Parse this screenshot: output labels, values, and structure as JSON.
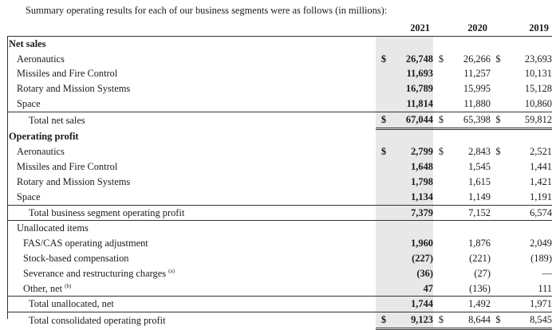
{
  "intro_text": "Summary operating results for each of our business segments were as follows (in millions):",
  "columns": [
    "2021",
    "2020",
    "2019"
  ],
  "currency_symbol": "$",
  "net_sales": {
    "heading": "Net sales",
    "rows": [
      {
        "label": "Aeronautics",
        "v2021": "26,748",
        "v2020": "26,266",
        "v2019": "23,693"
      },
      {
        "label": "Missiles and Fire Control",
        "v2021": "11,693",
        "v2020": "11,257",
        "v2019": "10,131"
      },
      {
        "label": "Rotary and Mission Systems",
        "v2021": "16,789",
        "v2020": "15,995",
        "v2019": "15,128"
      },
      {
        "label": "Space",
        "v2021": "11,814",
        "v2020": "11,880",
        "v2019": "10,860"
      }
    ],
    "total": {
      "label": "Total net sales",
      "v2021": "67,044",
      "v2020": "65,398",
      "v2019": "59,812"
    }
  },
  "operating_profit": {
    "heading": "Operating profit",
    "rows": [
      {
        "label": "Aeronautics",
        "v2021": "2,799",
        "v2020": "2,843",
        "v2019": "2,521"
      },
      {
        "label": "Missiles and Fire Control",
        "v2021": "1,648",
        "v2020": "1,545",
        "v2019": "1,441"
      },
      {
        "label": "Rotary and Mission Systems",
        "v2021": "1,798",
        "v2020": "1,615",
        "v2019": "1,421"
      },
      {
        "label": "Space",
        "v2021": "1,134",
        "v2020": "1,149",
        "v2019": "1,191"
      }
    ],
    "total": {
      "label": "Total business segment operating profit",
      "v2021": "7,379",
      "v2020": "7,152",
      "v2019": "6,574"
    }
  },
  "unallocated": {
    "heading": "Unallocated items",
    "rows": [
      {
        "label": "FAS/CAS operating adjustment",
        "note": "",
        "v2021": "1,960",
        "v2020": "1,876",
        "v2019": "2,049"
      },
      {
        "label": "Stock-based compensation",
        "note": "",
        "v2021": "(227)",
        "v2020": "(221)",
        "v2019": "(189)"
      },
      {
        "label": "Severance and restructuring charges",
        "note": "(a)",
        "v2021": "(36)",
        "v2020": "(27)",
        "v2019": "—"
      },
      {
        "label": "Other, net",
        "note": "(b)",
        "v2021": "47",
        "v2020": "(136)",
        "v2019": "111"
      }
    ],
    "total": {
      "label": "Total unallocated, net",
      "v2021": "1,744",
      "v2020": "1,492",
      "v2019": "1,971"
    }
  },
  "grand_total": {
    "label": "Total consolidated operating profit",
    "v2021": "9,123",
    "v2020": "8,644",
    "v2019": "8,545"
  }
}
